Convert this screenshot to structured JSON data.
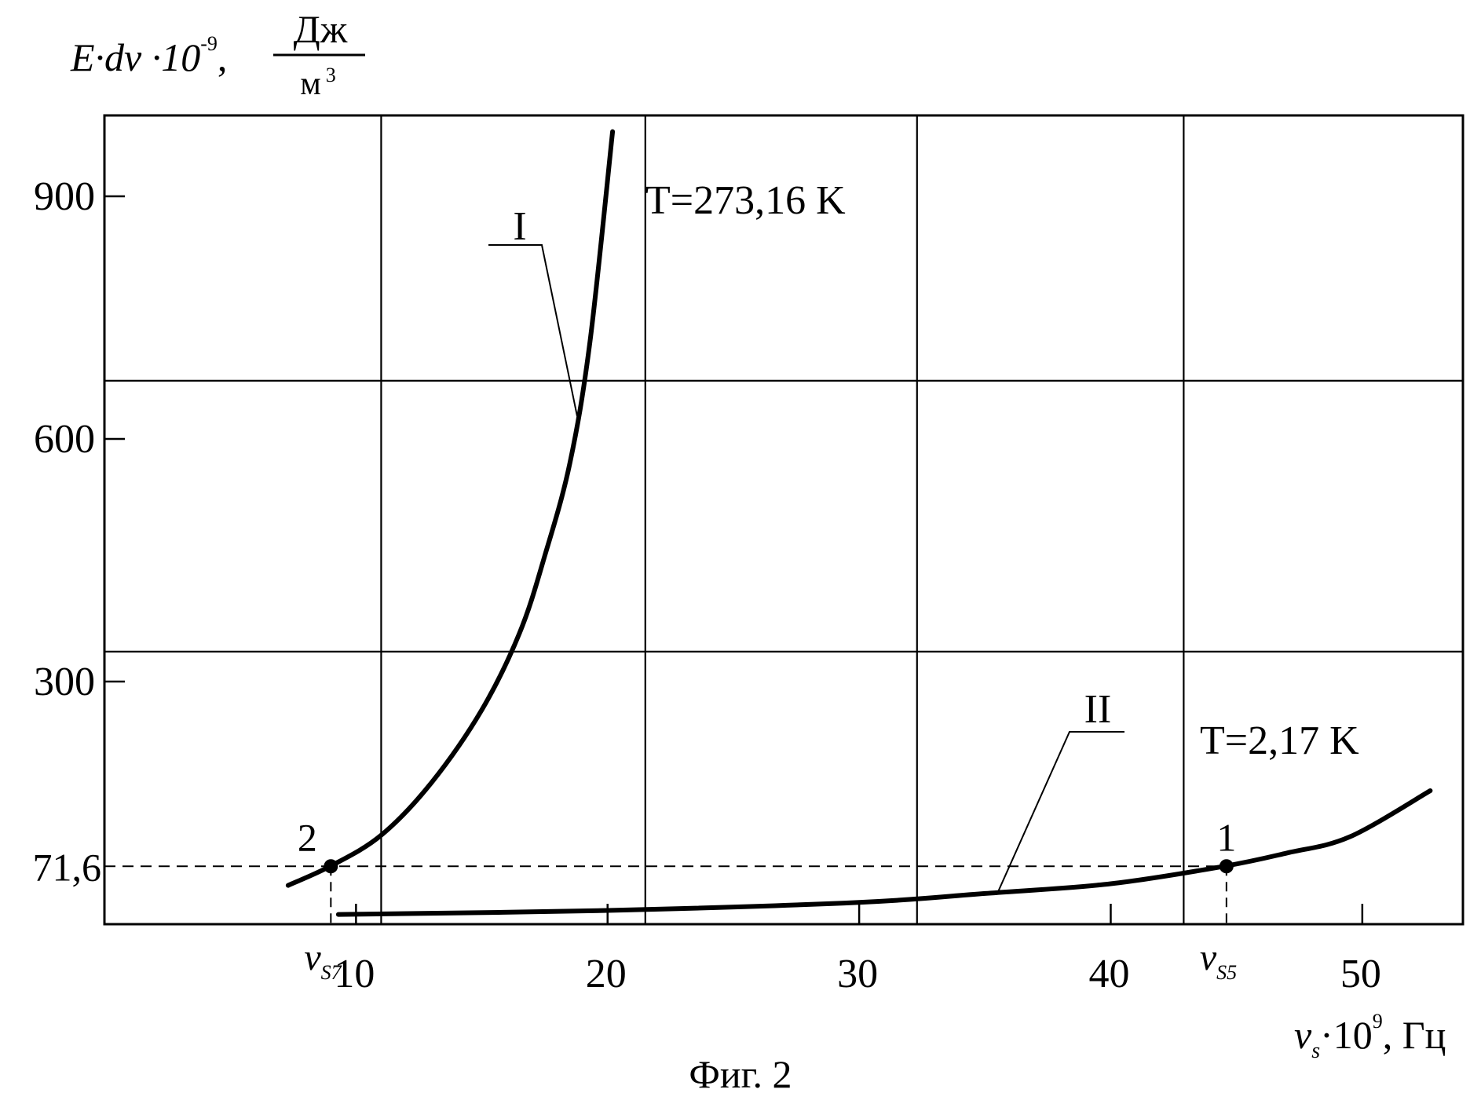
{
  "chart_data": {
    "type": "line",
    "title": "",
    "caption": "Фиг. 2",
    "ylabel": {
      "main": "E·dν ·10",
      "exp": "-9",
      "unit_num": "Дж",
      "unit_den": "м",
      "unit_den_exp": "3"
    },
    "xlabel": {
      "main": "ν",
      "sub": "s",
      "mid": "·10",
      "exp": "9",
      "unit": "Гц"
    },
    "xlim": [
      0,
      54
    ],
    "ylim": [
      0,
      1000
    ],
    "x_ticks": [
      10,
      20,
      30,
      40,
      50
    ],
    "y_ticks": [
      300,
      600,
      900
    ],
    "y_marked": {
      "label": "71,6",
      "value": 71.6
    },
    "grid": true,
    "grid_x": [
      11,
      21.5,
      32.3,
      42.9
    ],
    "grid_y": [
      337,
      672
    ],
    "series": [
      {
        "name": "I",
        "annotation": "T=273,16 K",
        "x": [
          7.3,
          9,
          11,
          13,
          15,
          16.5,
          17.5,
          18.5,
          19.3,
          20.2
        ],
        "y": [
          48,
          72,
          110,
          175,
          265,
          360,
          455,
          570,
          720,
          980
        ]
      },
      {
        "name": "II",
        "annotation": "T=2,17 K",
        "x": [
          9.3,
          20,
          30,
          35,
          40,
          44.5,
          47,
          49.5,
          52.7
        ],
        "y": [
          12,
          17,
          27,
          38,
          50,
          71.6,
          88,
          108,
          165
        ]
      }
    ],
    "points": [
      {
        "label": "2",
        "x": 9,
        "y": 71.6,
        "x_label": "ν",
        "x_label_sub": "S7"
      },
      {
        "label": "1",
        "x": 44.6,
        "y": 71.6,
        "x_label": "ν",
        "x_label_sub": "S5"
      }
    ]
  }
}
